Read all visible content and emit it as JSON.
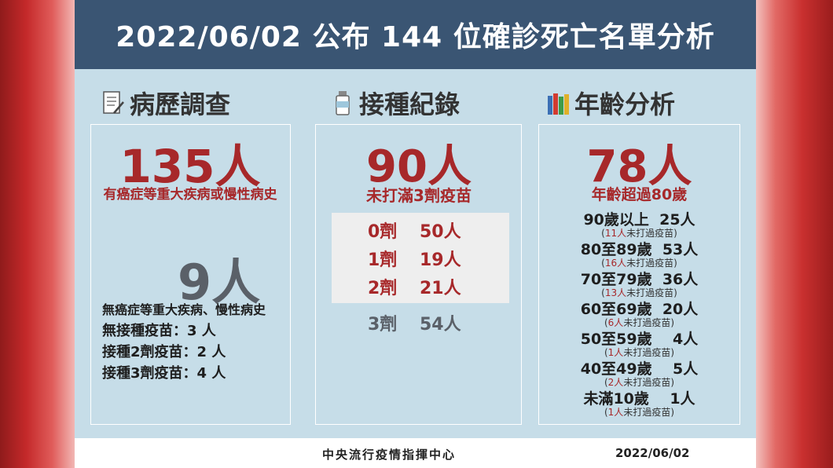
{
  "header": {
    "title": "2022/06/02 公布 144 位確診死亡名單分析"
  },
  "colors": {
    "header_bg": "#3a5573",
    "card_bg": "#c6dde8",
    "accent_red": "#a7282a",
    "gray": "#5a6068"
  },
  "history": {
    "title": "病歷調查",
    "icon": "document-icon",
    "main_count": "135人",
    "main_desc": "有癌症等重大疾病或慢性病史",
    "second_count": "9人",
    "second_desc": "無癌症等重大疾病、慢性病史",
    "lines": [
      "無接種疫苗：3 人",
      "接種2劑疫苗：2 人",
      "接種3劑疫苗：4 人"
    ]
  },
  "vaccine": {
    "title": "接種紀錄",
    "icon": "vaccine-bottle-icon",
    "main_count": "90人",
    "main_desc": "未打滿3劑疫苗",
    "doses": [
      {
        "dose": "0劑",
        "count": "50人"
      },
      {
        "dose": "1劑",
        "count": "19人"
      },
      {
        "dose": "2劑",
        "count": "21人"
      },
      {
        "dose": "3劑",
        "count": "54人"
      }
    ]
  },
  "age": {
    "title": "年齡分析",
    "icon": "books-icon",
    "main_count": "78人",
    "main_desc": "年齡超過80歲",
    "groups": [
      {
        "label": "90歲以上  25人",
        "note_n": "11人",
        "note_text": "未打過疫苗"
      },
      {
        "label": "80至89歲  53人",
        "note_n": "16人",
        "note_text": "未打過疫苗"
      },
      {
        "label": "70至79歲  36人",
        "note_n": "13人",
        "note_text": "未打過疫苗"
      },
      {
        "label": "60至69歲  20人",
        "note_n": "6人",
        "note_text": "未打過疫苗"
      },
      {
        "label": "50至59歲    4人",
        "note_n": "1人",
        "note_text": "未打過疫苗"
      },
      {
        "label": "40至49歲    5人",
        "note_n": "2人",
        "note_text": "未打過疫苗"
      },
      {
        "label": "未滿10歲    1人",
        "note_n": "1人",
        "note_text": "未打過疫苗"
      }
    ]
  },
  "footer": {
    "source": "中央流行疫情指揮中心",
    "date": "2022/06/02"
  }
}
